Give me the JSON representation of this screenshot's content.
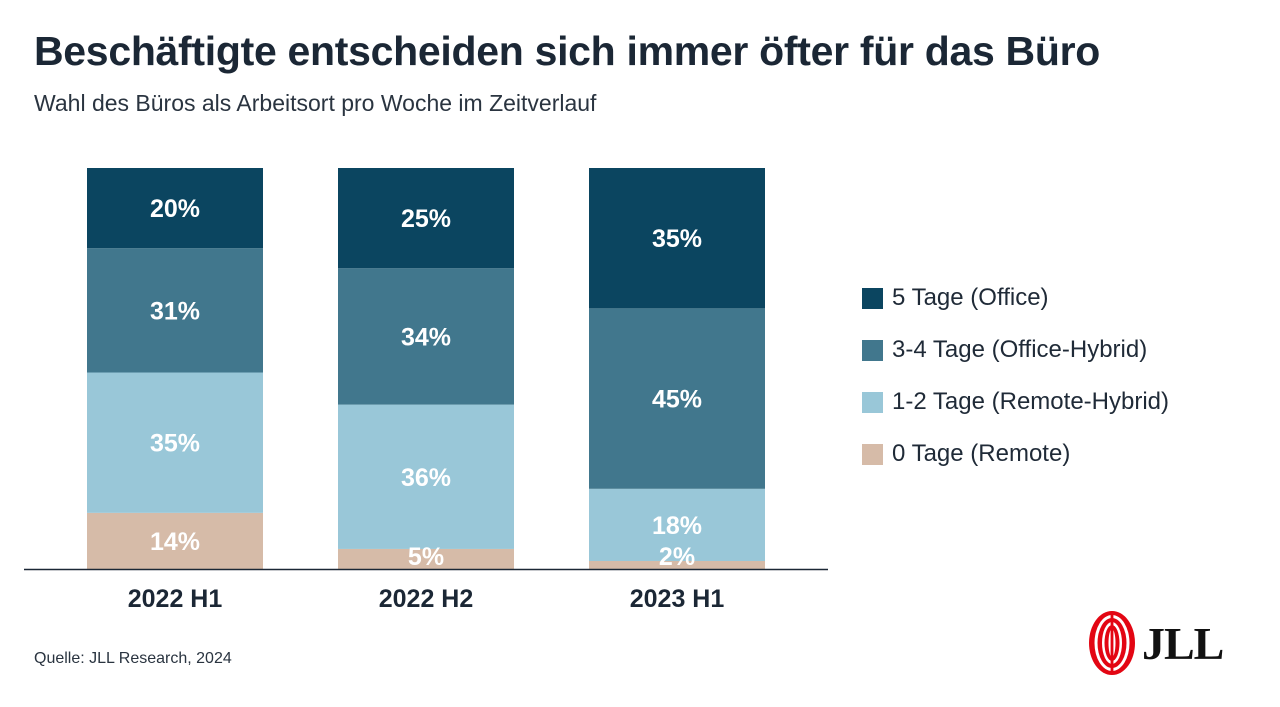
{
  "title": "Beschäftigte entscheiden sich immer öfter für das Büro",
  "subtitle": "Wahl des Büros als Arbeitsort pro Woche im Zeitverlauf",
  "source": "Quelle: JLL Research, 2024",
  "logo": {
    "text": "JLL",
    "icon": "jll-logo-icon",
    "color": "#e30613"
  },
  "chart_data": {
    "type": "bar",
    "stacked": true,
    "categories": [
      "2022 H1",
      "2022 H2",
      "2023 H1"
    ],
    "series": [
      {
        "name": "0 Tage (Remote)",
        "values": [
          14,
          5,
          2
        ],
        "color": "#d6bba8",
        "labels": [
          "14%",
          "5%",
          "2%"
        ]
      },
      {
        "name": "1-2 Tage (Remote-Hybrid)",
        "values": [
          35,
          36,
          18
        ],
        "color": "#99c7d8",
        "labels": [
          "35%",
          "36%",
          "18%"
        ]
      },
      {
        "name": "3-4 Tage (Office-Hybrid)",
        "values": [
          31,
          34,
          45
        ],
        "color": "#41778d",
        "labels": [
          "31%",
          "34%",
          "45%"
        ]
      },
      {
        "name": "5 Tage (Office)",
        "values": [
          20,
          25,
          35
        ],
        "color": "#0b4560",
        "labels": [
          "20%",
          "25%",
          "35%"
        ]
      }
    ],
    "legend_order": [
      "5 Tage (Office)",
      "3-4 Tage (Office-Hybrid)",
      "1-2 Tage (Remote-Hybrid)",
      "0 Tage (Remote)"
    ],
    "legend_position": "right",
    "ylim": [
      0,
      100
    ],
    "grid": false,
    "xlabel": "",
    "ylabel": ""
  }
}
